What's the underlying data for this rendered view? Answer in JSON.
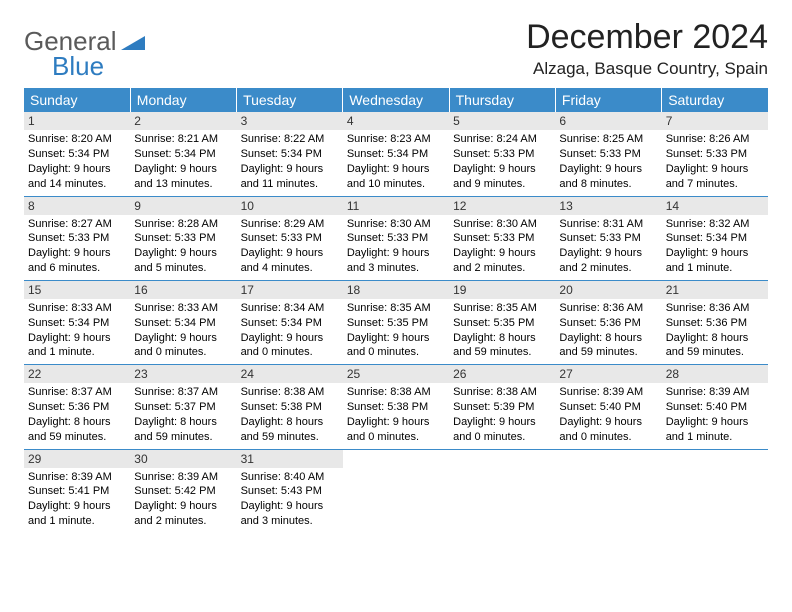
{
  "logo": {
    "line1": "General",
    "line2": "Blue"
  },
  "title": "December 2024",
  "location": "Alzaga, Basque Country, Spain",
  "colors": {
    "header_bg": "#3b8bc9",
    "header_text": "#ffffff",
    "daynum_bg": "#e8e8e8",
    "row_border": "#3b8bc9",
    "logo_gray": "#5a5a5a",
    "logo_blue": "#2e7cc0"
  },
  "typography": {
    "title_fontsize": 34,
    "location_fontsize": 17,
    "weekday_fontsize": 14,
    "daynum_fontsize": 12,
    "body_fontsize": 11
  },
  "weekdays": [
    "Sunday",
    "Monday",
    "Tuesday",
    "Wednesday",
    "Thursday",
    "Friday",
    "Saturday"
  ],
  "weeks": [
    [
      {
        "day": "1",
        "sunrise": "Sunrise: 8:20 AM",
        "sunset": "Sunset: 5:34 PM",
        "daylight": "Daylight: 9 hours and 14 minutes."
      },
      {
        "day": "2",
        "sunrise": "Sunrise: 8:21 AM",
        "sunset": "Sunset: 5:34 PM",
        "daylight": "Daylight: 9 hours and 13 minutes."
      },
      {
        "day": "3",
        "sunrise": "Sunrise: 8:22 AM",
        "sunset": "Sunset: 5:34 PM",
        "daylight": "Daylight: 9 hours and 11 minutes."
      },
      {
        "day": "4",
        "sunrise": "Sunrise: 8:23 AM",
        "sunset": "Sunset: 5:34 PM",
        "daylight": "Daylight: 9 hours and 10 minutes."
      },
      {
        "day": "5",
        "sunrise": "Sunrise: 8:24 AM",
        "sunset": "Sunset: 5:33 PM",
        "daylight": "Daylight: 9 hours and 9 minutes."
      },
      {
        "day": "6",
        "sunrise": "Sunrise: 8:25 AM",
        "sunset": "Sunset: 5:33 PM",
        "daylight": "Daylight: 9 hours and 8 minutes."
      },
      {
        "day": "7",
        "sunrise": "Sunrise: 8:26 AM",
        "sunset": "Sunset: 5:33 PM",
        "daylight": "Daylight: 9 hours and 7 minutes."
      }
    ],
    [
      {
        "day": "8",
        "sunrise": "Sunrise: 8:27 AM",
        "sunset": "Sunset: 5:33 PM",
        "daylight": "Daylight: 9 hours and 6 minutes."
      },
      {
        "day": "9",
        "sunrise": "Sunrise: 8:28 AM",
        "sunset": "Sunset: 5:33 PM",
        "daylight": "Daylight: 9 hours and 5 minutes."
      },
      {
        "day": "10",
        "sunrise": "Sunrise: 8:29 AM",
        "sunset": "Sunset: 5:33 PM",
        "daylight": "Daylight: 9 hours and 4 minutes."
      },
      {
        "day": "11",
        "sunrise": "Sunrise: 8:30 AM",
        "sunset": "Sunset: 5:33 PM",
        "daylight": "Daylight: 9 hours and 3 minutes."
      },
      {
        "day": "12",
        "sunrise": "Sunrise: 8:30 AM",
        "sunset": "Sunset: 5:33 PM",
        "daylight": "Daylight: 9 hours and 2 minutes."
      },
      {
        "day": "13",
        "sunrise": "Sunrise: 8:31 AM",
        "sunset": "Sunset: 5:33 PM",
        "daylight": "Daylight: 9 hours and 2 minutes."
      },
      {
        "day": "14",
        "sunrise": "Sunrise: 8:32 AM",
        "sunset": "Sunset: 5:34 PM",
        "daylight": "Daylight: 9 hours and 1 minute."
      }
    ],
    [
      {
        "day": "15",
        "sunrise": "Sunrise: 8:33 AM",
        "sunset": "Sunset: 5:34 PM",
        "daylight": "Daylight: 9 hours and 1 minute."
      },
      {
        "day": "16",
        "sunrise": "Sunrise: 8:33 AM",
        "sunset": "Sunset: 5:34 PM",
        "daylight": "Daylight: 9 hours and 0 minutes."
      },
      {
        "day": "17",
        "sunrise": "Sunrise: 8:34 AM",
        "sunset": "Sunset: 5:34 PM",
        "daylight": "Daylight: 9 hours and 0 minutes."
      },
      {
        "day": "18",
        "sunrise": "Sunrise: 8:35 AM",
        "sunset": "Sunset: 5:35 PM",
        "daylight": "Daylight: 9 hours and 0 minutes."
      },
      {
        "day": "19",
        "sunrise": "Sunrise: 8:35 AM",
        "sunset": "Sunset: 5:35 PM",
        "daylight": "Daylight: 8 hours and 59 minutes."
      },
      {
        "day": "20",
        "sunrise": "Sunrise: 8:36 AM",
        "sunset": "Sunset: 5:36 PM",
        "daylight": "Daylight: 8 hours and 59 minutes."
      },
      {
        "day": "21",
        "sunrise": "Sunrise: 8:36 AM",
        "sunset": "Sunset: 5:36 PM",
        "daylight": "Daylight: 8 hours and 59 minutes."
      }
    ],
    [
      {
        "day": "22",
        "sunrise": "Sunrise: 8:37 AM",
        "sunset": "Sunset: 5:36 PM",
        "daylight": "Daylight: 8 hours and 59 minutes."
      },
      {
        "day": "23",
        "sunrise": "Sunrise: 8:37 AM",
        "sunset": "Sunset: 5:37 PM",
        "daylight": "Daylight: 8 hours and 59 minutes."
      },
      {
        "day": "24",
        "sunrise": "Sunrise: 8:38 AM",
        "sunset": "Sunset: 5:38 PM",
        "daylight": "Daylight: 8 hours and 59 minutes."
      },
      {
        "day": "25",
        "sunrise": "Sunrise: 8:38 AM",
        "sunset": "Sunset: 5:38 PM",
        "daylight": "Daylight: 9 hours and 0 minutes."
      },
      {
        "day": "26",
        "sunrise": "Sunrise: 8:38 AM",
        "sunset": "Sunset: 5:39 PM",
        "daylight": "Daylight: 9 hours and 0 minutes."
      },
      {
        "day": "27",
        "sunrise": "Sunrise: 8:39 AM",
        "sunset": "Sunset: 5:40 PM",
        "daylight": "Daylight: 9 hours and 0 minutes."
      },
      {
        "day": "28",
        "sunrise": "Sunrise: 8:39 AM",
        "sunset": "Sunset: 5:40 PM",
        "daylight": "Daylight: 9 hours and 1 minute."
      }
    ],
    [
      {
        "day": "29",
        "sunrise": "Sunrise: 8:39 AM",
        "sunset": "Sunset: 5:41 PM",
        "daylight": "Daylight: 9 hours and 1 minute."
      },
      {
        "day": "30",
        "sunrise": "Sunrise: 8:39 AM",
        "sunset": "Sunset: 5:42 PM",
        "daylight": "Daylight: 9 hours and 2 minutes."
      },
      {
        "day": "31",
        "sunrise": "Sunrise: 8:40 AM",
        "sunset": "Sunset: 5:43 PM",
        "daylight": "Daylight: 9 hours and 3 minutes."
      },
      null,
      null,
      null,
      null
    ]
  ]
}
